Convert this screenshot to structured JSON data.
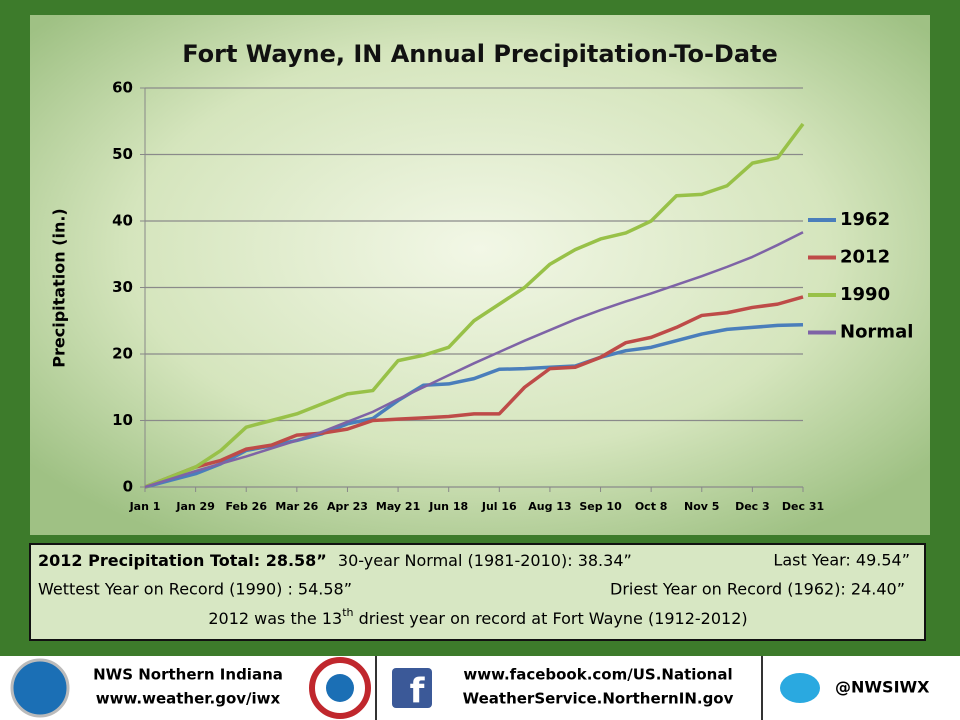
{
  "chart_data": {
    "type": "line",
    "title": "Fort Wayne, IN Annual Precipitation-To-Date",
    "y_label": "Precipitation (in.)",
    "x": [
      1,
      15,
      29,
      43,
      57,
      71,
      85,
      99,
      113,
      127,
      141,
      155,
      169,
      183,
      197,
      211,
      225,
      239,
      253,
      267,
      281,
      295,
      309,
      323,
      337,
      351,
      365
    ],
    "xlim": [
      1,
      365
    ],
    "xticks": [
      {
        "value": 1,
        "label": "Jan 1"
      },
      {
        "value": 29,
        "label": "Jan 29"
      },
      {
        "value": 57,
        "label": "Feb 26"
      },
      {
        "value": 85,
        "label": "Mar 26"
      },
      {
        "value": 113,
        "label": "Apr 23"
      },
      {
        "value": 141,
        "label": "May 21"
      },
      {
        "value": 169,
        "label": "Jun 18"
      },
      {
        "value": 197,
        "label": "Jul 16"
      },
      {
        "value": 225,
        "label": "Aug 13"
      },
      {
        "value": 253,
        "label": "Sep 10"
      },
      {
        "value": 281,
        "label": "Oct 8"
      },
      {
        "value": 309,
        "label": "Nov 5"
      },
      {
        "value": 337,
        "label": "Dec 3"
      },
      {
        "value": 365,
        "label": "Dec 31"
      }
    ],
    "ylim": [
      0,
      60
    ],
    "yticks": [
      0,
      10,
      20,
      30,
      40,
      50,
      60
    ],
    "grid": true,
    "series": [
      {
        "name": "1962",
        "color": "#4a7ebb",
        "values": [
          0,
          1,
          2,
          3.5,
          5.5,
          6.2,
          7,
          8,
          9.5,
          10.3,
          13,
          15.3,
          15.5,
          16.3,
          17.7,
          17.8,
          18,
          18.2,
          19.5,
          20.5,
          21,
          22,
          23,
          23.7,
          24,
          24.3,
          24.4
        ]
      },
      {
        "name": "2012",
        "color": "#be4b48",
        "values": [
          0,
          1.5,
          3,
          4,
          5.7,
          6.3,
          7.8,
          8.1,
          8.7,
          10,
          10.2,
          10.4,
          10.6,
          11,
          11,
          15,
          17.8,
          18,
          19.5,
          21.7,
          22.5,
          24,
          25.8,
          26.2,
          27,
          27.5,
          28.58
        ]
      },
      {
        "name": "1990",
        "color": "#98c148",
        "values": [
          0,
          1.5,
          3,
          5.5,
          9,
          10,
          11,
          12.5,
          14,
          14.5,
          19,
          19.8,
          21,
          25,
          27.5,
          30,
          33.5,
          35.7,
          37.3,
          38.2,
          40,
          43.8,
          44,
          45.3,
          48.7,
          49.5,
          54.6
        ]
      },
      {
        "name": "Normal",
        "color": "#7e63a6",
        "values": [
          0,
          1.2,
          2.4,
          3.5,
          4.6,
          5.8,
          7,
          8.3,
          9.8,
          11.3,
          13.2,
          15,
          16.8,
          18.6,
          20.3,
          22,
          23.6,
          25.2,
          26.6,
          27.9,
          29.1,
          30.4,
          31.7,
          33.1,
          34.6,
          36.4,
          38.3
        ]
      }
    ]
  },
  "summary": {
    "total_label": "2012 Precipitation Total:  28.58”",
    "normal": "30-year Normal (1981-2010):  38.34”",
    "last_year": "Last Year: 49.54”",
    "wettest": "Wettest Year on Record (1990) : 54.58”",
    "driest": "Driest Year on Record (1962):  24.40”",
    "rank": [
      "2012 was the 13",
      "th",
      " driest year on record at Fort Wayne (1912-2012)"
    ]
  },
  "footer": {
    "office": "NWS  Northern Indiana",
    "website": "www.weather.gov/iwx",
    "facebook": [
      "www.facebook.com/US.National",
      "WeatherService.NorthernIN.gov"
    ],
    "twitter": "@NWSIWX"
  }
}
